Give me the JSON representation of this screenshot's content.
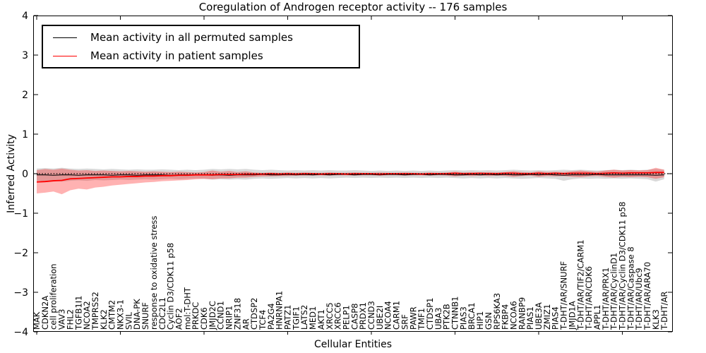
{
  "figure": {
    "title": "Coregulation of Androgen receptor activity -- 176 samples",
    "xlabel": "Cellular Entities",
    "ylabel": "Inferred Activity",
    "background": "#ffffff"
  },
  "legend": {
    "items": [
      {
        "label": "Mean activity in all permuted samples",
        "color": "#000000"
      },
      {
        "label": "Mean activity in patient samples",
        "color": "#ff0000"
      }
    ],
    "position": "upper left"
  },
  "chart_data": {
    "type": "line",
    "title": "Coregulation of Androgen receptor activity -- 176 samples",
    "xlabel": "Cellular Entities",
    "ylabel": "Inferred Activity",
    "ylim": [
      -4,
      4
    ],
    "y_ticks": [
      "4",
      "3",
      "2",
      "1",
      "0",
      "−1",
      "−2",
      "−3",
      "−4"
    ],
    "y_tick_values": [
      4,
      3,
      2,
      1,
      0,
      -1,
      -2,
      -3,
      -4
    ],
    "x_major_tick_every": 10,
    "grid": false,
    "zero_line": true,
    "legend_position": "upper left",
    "categories": [
      "MAK",
      "CDKN2A",
      "cell proliferation",
      "VAV3",
      "FHL2",
      "TGFB1I1",
      "NCOA2",
      "TMPRSS2",
      "KLK2",
      "CMTM2",
      "NKX3-1",
      "SVIL",
      "DNA-PK",
      "SNURF",
      "response to oxidative stress",
      "CDC2L1",
      "Cyclin D3/CDK11 p58",
      "AOF2",
      "mol:T-DHT",
      "PRKDC",
      "CDK6",
      "JMJD2C",
      "CCND1",
      "NRIP1",
      "ZNF318",
      "AR",
      "CTDSP2",
      "TCF4",
      "PA2G4",
      "HNRNPA1",
      "PATZ1",
      "TGIF1",
      "LATS2",
      "MED1",
      "AKT1",
      "XRCC5",
      "XRCC6",
      "PELP1",
      "CASP8",
      "PRDX1",
      "CCND3",
      "UBE2I",
      "NCOA4",
      "CARM1",
      "SRF",
      "PAWR",
      "TMF1",
      "CTDSP1",
      "UBA3",
      "PTK2B",
      "CTNNB1",
      "PIAS3",
      "BRCA1",
      "HIP1",
      "GSN",
      "RPS6KA3",
      "FKBP4",
      "NCOA6",
      "RANBP9",
      "PIAS1",
      "UBE3A",
      "ZMIZ1",
      "PIAS4",
      "T-DHT/AR/SNURF",
      "JMJD1A",
      "T-DHT/AR/TIF2/CARM1",
      "T-DHT/AR/CDK6",
      "APPL1",
      "T-DHT/AR/PRX1",
      "T-DHT/AR/CyclinD1",
      "T-DHT/AR/Cyclin D3/CDK11 p58",
      "T-DHT/AR/Caspase 8",
      "T-DHT/AR/Ubc9",
      "T-DHT/AR/ARA70",
      "KLK3",
      "T-DHT/AR"
    ],
    "series": [
      {
        "name": "Mean activity in all permuted samples",
        "color": "#000000",
        "values": [
          -0.03,
          -0.03,
          -0.04,
          -0.03,
          -0.03,
          -0.04,
          -0.03,
          -0.03,
          -0.03,
          -0.04,
          -0.03,
          -0.03,
          -0.04,
          -0.03,
          -0.03,
          -0.03,
          -0.04,
          -0.03,
          -0.03,
          -0.03,
          -0.03,
          -0.04,
          -0.03,
          -0.04,
          -0.03,
          -0.03,
          -0.03,
          -0.02,
          -0.03,
          -0.03,
          -0.02,
          -0.03,
          -0.02,
          -0.03,
          -0.02,
          -0.03,
          -0.02,
          -0.02,
          -0.03,
          -0.02,
          -0.02,
          -0.03,
          -0.02,
          -0.02,
          -0.03,
          -0.02,
          -0.02,
          -0.03,
          -0.02,
          -0.02,
          -0.03,
          -0.03,
          -0.02,
          -0.03,
          -0.02,
          -0.03,
          -0.02,
          -0.03,
          -0.03,
          -0.02,
          -0.03,
          -0.02,
          -0.03,
          -0.04,
          -0.03,
          -0.03,
          -0.03,
          -0.02,
          -0.03,
          -0.03,
          -0.03,
          -0.03,
          -0.03,
          -0.03,
          -0.04,
          -0.03
        ]
      },
      {
        "name": "Mean activity in patient samples",
        "color": "#ff0000",
        "values": [
          -0.21,
          -0.2,
          -0.18,
          -0.17,
          -0.13,
          -0.12,
          -0.11,
          -0.1,
          -0.09,
          -0.08,
          -0.08,
          -0.07,
          -0.07,
          -0.06,
          -0.06,
          -0.05,
          -0.05,
          -0.04,
          -0.04,
          -0.03,
          -0.03,
          -0.03,
          -0.02,
          -0.02,
          -0.02,
          -0.01,
          -0.01,
          -0.01,
          0.0,
          -0.01,
          0.0,
          -0.01,
          0.0,
          0.0,
          -0.01,
          0.0,
          0.0,
          -0.01,
          0.0,
          0.0,
          0.0,
          -0.01,
          0.0,
          0.0,
          0.0,
          0.0,
          -0.01,
          0.0,
          0.0,
          0.0,
          0.01,
          0.0,
          0.0,
          0.01,
          0.0,
          0.0,
          0.01,
          0.01,
          0.0,
          0.0,
          0.01,
          0.0,
          0.01,
          0.0,
          0.01,
          0.01,
          0.01,
          0.0,
          0.01,
          0.02,
          0.01,
          0.02,
          0.02,
          0.02,
          0.03,
          0.03
        ]
      }
    ],
    "bands": [
      {
        "name": "permuted-range-band",
        "color": "rgba(0,0,0,0.15)",
        "upper": [
          0.13,
          0.14,
          0.13,
          0.15,
          0.13,
          0.12,
          0.13,
          0.12,
          0.11,
          0.12,
          0.11,
          0.1,
          0.11,
          0.1,
          0.1,
          0.11,
          0.1,
          0.09,
          0.1,
          0.09,
          0.1,
          0.12,
          0.11,
          0.12,
          0.11,
          0.12,
          0.1,
          0.09,
          0.1,
          0.09,
          0.08,
          0.09,
          0.08,
          0.09,
          0.08,
          0.09,
          0.08,
          0.08,
          0.09,
          0.08,
          0.07,
          0.08,
          0.07,
          0.08,
          0.07,
          0.08,
          0.07,
          0.08,
          0.07,
          0.08,
          0.09,
          0.08,
          0.09,
          0.08,
          0.09,
          0.08,
          0.09,
          0.1,
          0.09,
          0.08,
          0.09,
          0.08,
          0.09,
          0.1,
          0.09,
          0.1,
          0.09,
          0.08,
          0.09,
          0.1,
          0.09,
          0.1,
          0.09,
          0.1,
          0.12,
          0.1
        ],
        "lower": [
          -0.18,
          -0.19,
          -0.18,
          -0.2,
          -0.18,
          -0.17,
          -0.18,
          -0.16,
          -0.17,
          -0.16,
          -0.15,
          -0.16,
          -0.15,
          -0.14,
          -0.15,
          -0.14,
          -0.13,
          -0.14,
          -0.13,
          -0.12,
          -0.13,
          -0.15,
          -0.14,
          -0.15,
          -0.14,
          -0.15,
          -0.13,
          -0.12,
          -0.13,
          -0.12,
          -0.11,
          -0.12,
          -0.11,
          -0.12,
          -0.11,
          -0.12,
          -0.11,
          -0.1,
          -0.11,
          -0.1,
          -0.11,
          -0.1,
          -0.11,
          -0.1,
          -0.11,
          -0.1,
          -0.11,
          -0.1,
          -0.11,
          -0.1,
          -0.11,
          -0.12,
          -0.11,
          -0.12,
          -0.11,
          -0.12,
          -0.11,
          -0.12,
          -0.13,
          -0.12,
          -0.11,
          -0.12,
          -0.13,
          -0.18,
          -0.14,
          -0.12,
          -0.13,
          -0.12,
          -0.13,
          -0.12,
          -0.13,
          -0.12,
          -0.13,
          -0.14,
          -0.2,
          -0.14
        ]
      },
      {
        "name": "patient-range-band",
        "color": "rgba(255,0,0,0.30)",
        "upper": [
          0.09,
          0.12,
          0.1,
          0.13,
          0.1,
          0.08,
          0.09,
          0.07,
          0.08,
          0.07,
          0.06,
          0.07,
          0.06,
          0.05,
          0.06,
          0.05,
          0.04,
          0.05,
          0.04,
          0.03,
          0.04,
          0.08,
          0.05,
          0.07,
          0.04,
          0.06,
          0.03,
          0.02,
          0.03,
          0.02,
          0.03,
          0.02,
          0.03,
          0.02,
          0.02,
          0.03,
          0.02,
          0.02,
          0.03,
          0.02,
          0.02,
          0.03,
          0.02,
          0.02,
          0.03,
          0.02,
          0.02,
          0.03,
          0.02,
          0.03,
          0.05,
          0.03,
          0.04,
          0.03,
          0.04,
          0.03,
          0.04,
          0.06,
          0.04,
          0.03,
          0.06,
          0.04,
          0.05,
          0.04,
          0.06,
          0.08,
          0.06,
          0.05,
          0.08,
          0.1,
          0.08,
          0.09,
          0.08,
          0.09,
          0.15,
          0.1
        ],
        "lower": [
          -0.5,
          -0.48,
          -0.45,
          -0.52,
          -0.42,
          -0.38,
          -0.4,
          -0.35,
          -0.33,
          -0.3,
          -0.28,
          -0.26,
          -0.24,
          -0.22,
          -0.21,
          -0.19,
          -0.18,
          -0.17,
          -0.16,
          -0.14,
          -0.13,
          -0.14,
          -0.12,
          -0.12,
          -0.1,
          -0.1,
          -0.08,
          -0.07,
          -0.07,
          -0.06,
          -0.06,
          -0.05,
          -0.05,
          -0.05,
          -0.04,
          -0.05,
          -0.04,
          -0.04,
          -0.05,
          -0.04,
          -0.04,
          -0.05,
          -0.04,
          -0.04,
          -0.05,
          -0.04,
          -0.04,
          -0.05,
          -0.04,
          -0.05,
          -0.07,
          -0.05,
          -0.06,
          -0.05,
          -0.06,
          -0.05,
          -0.06,
          -0.08,
          -0.06,
          -0.05,
          -0.08,
          -0.06,
          -0.07,
          -0.06,
          -0.08,
          -0.09,
          -0.07,
          -0.06,
          -0.08,
          -0.1,
          -0.08,
          -0.09,
          -0.08,
          -0.09,
          -0.13,
          -0.09
        ]
      }
    ]
  }
}
